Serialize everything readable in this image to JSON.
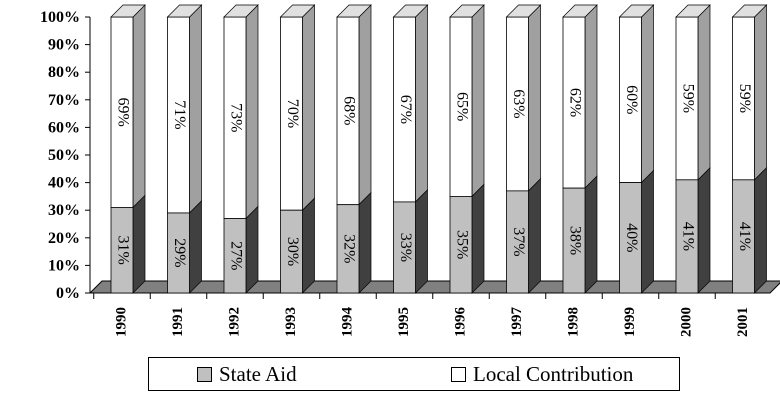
{
  "chart_data": {
    "type": "bar",
    "stacked": true,
    "percent_stacked": true,
    "three_d": true,
    "categories": [
      "1990",
      "1991",
      "1992",
      "1993",
      "1994",
      "1995",
      "1996",
      "1997",
      "1998",
      "1999",
      "2000",
      "2001"
    ],
    "series": [
      {
        "name": "State Aid",
        "values": [
          31,
          29,
          27,
          30,
          32,
          33,
          35,
          37,
          38,
          40,
          41,
          41
        ],
        "labels": [
          "31%",
          "29%",
          "27%",
          "30%",
          "32%",
          "33%",
          "35%",
          "37%",
          "38%",
          "40%",
          "41%",
          "41%"
        ],
        "color": "#c0c0c0"
      },
      {
        "name": "Local Contribution",
        "values": [
          69,
          71,
          73,
          70,
          68,
          67,
          65,
          63,
          62,
          60,
          59,
          59
        ],
        "labels": [
          "69%",
          "71%",
          "73%",
          "70%",
          "68%",
          "67%",
          "65%",
          "63%",
          "62%",
          "60%",
          "59%",
          "59%"
        ],
        "color": "#ffffff"
      }
    ],
    "yticks": [
      "0%",
      "10%",
      "20%",
      "30%",
      "40%",
      "50%",
      "60%",
      "70%",
      "80%",
      "90%",
      "100%"
    ],
    "ylim": [
      0,
      100
    ],
    "grid": false,
    "legend_position": "bottom",
    "colors": {
      "wall": "#c0c0c0",
      "floor": "#808080",
      "side_dark": "#404040",
      "side_light": "#a0a0a0"
    }
  }
}
